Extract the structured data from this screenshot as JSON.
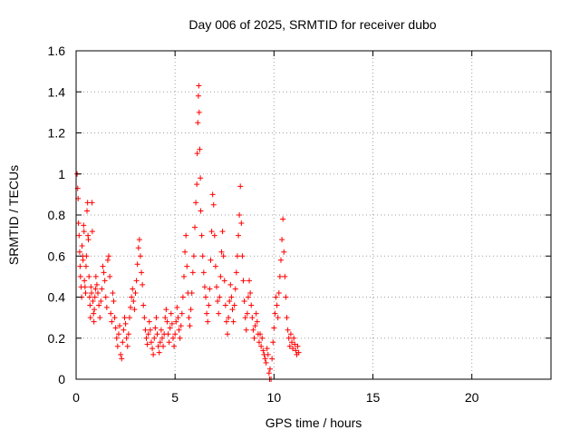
{
  "colors": {
    "series": "#ff0000",
    "axis": "#000000",
    "grid": "#a0a0a0"
  },
  "chart_data": {
    "type": "scatter",
    "title": "Day 006 of 2025, SRMTID for receiver dubo",
    "xlabel": "GPS time / hours",
    "ylabel": "SRMTID / TECUs",
    "xlim": [
      0,
      24
    ],
    "ylim": [
      0,
      1.6
    ],
    "xticks": [
      0,
      5,
      10,
      15,
      20
    ],
    "xtick_labels": [
      "0",
      "5",
      "10",
      "15",
      "20"
    ],
    "yticks": [
      0,
      0.2,
      0.4,
      0.6,
      0.8,
      1,
      1.2,
      1.4,
      1.6
    ],
    "ytick_labels": [
      "0",
      "0.2",
      "0.4",
      "0.6",
      "0.8",
      "1",
      "1.2",
      "1.4",
      "1.6"
    ],
    "grid": true,
    "marker": "+",
    "series": [
      {
        "name": "SRMTID",
        "points": [
          [
            0.05,
            1.0
          ],
          [
            0.08,
            0.93
          ],
          [
            0.1,
            0.88
          ],
          [
            0.12,
            0.76
          ],
          [
            0.15,
            0.7
          ],
          [
            0.18,
            0.62
          ],
          [
            0.2,
            0.55
          ],
          [
            0.22,
            0.5
          ],
          [
            0.25,
            0.45
          ],
          [
            0.28,
            0.4
          ],
          [
            0.3,
            0.65
          ],
          [
            0.33,
            0.6
          ],
          [
            0.35,
            0.58
          ],
          [
            0.38,
            0.75
          ],
          [
            0.4,
            0.72
          ],
          [
            0.42,
            0.48
          ],
          [
            0.45,
            0.45
          ],
          [
            0.48,
            0.42
          ],
          [
            0.5,
            0.55
          ],
          [
            0.52,
            0.6
          ],
          [
            0.55,
            0.82
          ],
          [
            0.58,
            0.86
          ],
          [
            0.6,
            0.7
          ],
          [
            0.62,
            0.68
          ],
          [
            0.65,
            0.5
          ],
          [
            0.68,
            0.4
          ],
          [
            0.7,
            0.36
          ],
          [
            0.72,
            0.3
          ],
          [
            0.75,
            0.45
          ],
          [
            0.78,
            0.42
          ],
          [
            0.8,
            0.86
          ],
          [
            0.82,
            0.72
          ],
          [
            0.85,
            0.38
          ],
          [
            0.88,
            0.32
          ],
          [
            0.9,
            0.28
          ],
          [
            0.92,
            0.34
          ],
          [
            0.95,
            0.4
          ],
          [
            0.98,
            0.44
          ],
          [
            1.0,
            0.5
          ],
          [
            1.05,
            0.46
          ],
          [
            1.1,
            0.42
          ],
          [
            1.15,
            0.36
          ],
          [
            1.2,
            0.3
          ],
          [
            1.25,
            0.38
          ],
          [
            1.3,
            0.44
          ],
          [
            1.35,
            0.55
          ],
          [
            1.4,
            0.52
          ],
          [
            1.45,
            0.48
          ],
          [
            1.5,
            0.4
          ],
          [
            1.55,
            0.35
          ],
          [
            1.6,
            0.58
          ],
          [
            1.65,
            0.6
          ],
          [
            1.7,
            0.5
          ],
          [
            1.75,
            0.32
          ],
          [
            1.8,
            0.28
          ],
          [
            1.85,
            0.42
          ],
          [
            1.9,
            0.38
          ],
          [
            1.95,
            0.3
          ],
          [
            2.0,
            0.25
          ],
          [
            2.05,
            0.2
          ],
          [
            2.1,
            0.16
          ],
          [
            2.15,
            0.22
          ],
          [
            2.2,
            0.26
          ],
          [
            2.25,
            0.12
          ],
          [
            2.3,
            0.1
          ],
          [
            2.35,
            0.18
          ],
          [
            2.4,
            0.24
          ],
          [
            2.45,
            0.3
          ],
          [
            2.5,
            0.27
          ],
          [
            2.55,
            0.2
          ],
          [
            2.6,
            0.16
          ],
          [
            2.65,
            0.22
          ],
          [
            2.7,
            0.3
          ],
          [
            2.75,
            0.35
          ],
          [
            2.8,
            0.4
          ],
          [
            2.85,
            0.44
          ],
          [
            2.9,
            0.38
          ],
          [
            2.95,
            0.34
          ],
          [
            3.0,
            0.42
          ],
          [
            3.05,
            0.48
          ],
          [
            3.1,
            0.56
          ],
          [
            3.15,
            0.64
          ],
          [
            3.2,
            0.68
          ],
          [
            3.25,
            0.6
          ],
          [
            3.3,
            0.52
          ],
          [
            3.35,
            0.46
          ],
          [
            3.4,
            0.36
          ],
          [
            3.45,
            0.3
          ],
          [
            3.5,
            0.24
          ],
          [
            3.55,
            0.2
          ],
          [
            3.6,
            0.17
          ],
          [
            3.65,
            0.22
          ],
          [
            3.7,
            0.28
          ],
          [
            3.75,
            0.24
          ],
          [
            3.8,
            0.18
          ],
          [
            3.85,
            0.15
          ],
          [
            3.9,
            0.12
          ],
          [
            3.95,
            0.2
          ],
          [
            4.0,
            0.25
          ],
          [
            4.05,
            0.3
          ],
          [
            4.1,
            0.22
          ],
          [
            4.15,
            0.16
          ],
          [
            4.2,
            0.13
          ],
          [
            4.25,
            0.18
          ],
          [
            4.3,
            0.24
          ],
          [
            4.35,
            0.2
          ],
          [
            4.4,
            0.16
          ],
          [
            4.45,
            0.22
          ],
          [
            4.5,
            0.3
          ],
          [
            4.55,
            0.34
          ],
          [
            4.6,
            0.28
          ],
          [
            4.65,
            0.22
          ],
          [
            4.7,
            0.18
          ],
          [
            4.75,
            0.25
          ],
          [
            4.8,
            0.32
          ],
          [
            4.85,
            0.27
          ],
          [
            4.9,
            0.2
          ],
          [
            4.95,
            0.16
          ],
          [
            5.0,
            0.22
          ],
          [
            5.05,
            0.28
          ],
          [
            5.1,
            0.35
          ],
          [
            5.15,
            0.3
          ],
          [
            5.2,
            0.24
          ],
          [
            5.25,
            0.2
          ],
          [
            5.3,
            0.26
          ],
          [
            5.35,
            0.32
          ],
          [
            5.4,
            0.4
          ],
          [
            5.45,
            0.5
          ],
          [
            5.5,
            0.62
          ],
          [
            5.55,
            0.7
          ],
          [
            5.6,
            0.55
          ],
          [
            5.65,
            0.42
          ],
          [
            5.7,
            0.3
          ],
          [
            5.75,
            0.26
          ],
          [
            5.8,
            0.34
          ],
          [
            5.85,
            0.42
          ],
          [
            5.9,
            0.52
          ],
          [
            5.95,
            0.6
          ],
          [
            6.0,
            0.74
          ],
          [
            6.05,
            0.86
          ],
          [
            6.1,
            0.95
          ],
          [
            6.12,
            1.1
          ],
          [
            6.15,
            1.25
          ],
          [
            6.18,
            1.38
          ],
          [
            6.2,
            1.43
          ],
          [
            6.22,
            1.3
          ],
          [
            6.25,
            1.12
          ],
          [
            6.28,
            0.98
          ],
          [
            6.3,
            0.82
          ],
          [
            6.35,
            0.7
          ],
          [
            6.4,
            0.6
          ],
          [
            6.45,
            0.52
          ],
          [
            6.5,
            0.45
          ],
          [
            6.55,
            0.4
          ],
          [
            6.6,
            0.32
          ],
          [
            6.65,
            0.28
          ],
          [
            6.7,
            0.36
          ],
          [
            6.75,
            0.44
          ],
          [
            6.8,
            0.58
          ],
          [
            6.85,
            0.72
          ],
          [
            6.9,
            0.9
          ],
          [
            6.95,
            0.85
          ],
          [
            7.0,
            0.7
          ],
          [
            7.05,
            0.55
          ],
          [
            7.1,
            0.45
          ],
          [
            7.15,
            0.38
          ],
          [
            7.2,
            0.32
          ],
          [
            7.25,
            0.4
          ],
          [
            7.3,
            0.5
          ],
          [
            7.35,
            0.62
          ],
          [
            7.4,
            0.72
          ],
          [
            7.45,
            0.6
          ],
          [
            7.5,
            0.48
          ],
          [
            7.55,
            0.36
          ],
          [
            7.6,
            0.28
          ],
          [
            7.65,
            0.22
          ],
          [
            7.7,
            0.3
          ],
          [
            7.75,
            0.38
          ],
          [
            7.8,
            0.46
          ],
          [
            7.85,
            0.4
          ],
          [
            7.9,
            0.34
          ],
          [
            7.95,
            0.28
          ],
          [
            8.0,
            0.36
          ],
          [
            8.05,
            0.44
          ],
          [
            8.1,
            0.52
          ],
          [
            8.15,
            0.6
          ],
          [
            8.2,
            0.7
          ],
          [
            8.25,
            0.8
          ],
          [
            8.3,
            0.94
          ],
          [
            8.35,
            0.76
          ],
          [
            8.4,
            0.6
          ],
          [
            8.45,
            0.48
          ],
          [
            8.5,
            0.38
          ],
          [
            8.55,
            0.3
          ],
          [
            8.6,
            0.24
          ],
          [
            8.65,
            0.32
          ],
          [
            8.7,
            0.4
          ],
          [
            8.75,
            0.48
          ],
          [
            8.8,
            0.42
          ],
          [
            8.85,
            0.36
          ],
          [
            8.9,
            0.3
          ],
          [
            8.95,
            0.24
          ],
          [
            9.0,
            0.2
          ],
          [
            9.05,
            0.26
          ],
          [
            9.1,
            0.32
          ],
          [
            9.15,
            0.28
          ],
          [
            9.2,
            0.22
          ],
          [
            9.25,
            0.18
          ],
          [
            9.3,
            0.22
          ],
          [
            9.35,
            0.16
          ],
          [
            9.4,
            0.2
          ],
          [
            9.45,
            0.14
          ],
          [
            9.5,
            0.12
          ],
          [
            9.55,
            0.1
          ],
          [
            9.6,
            0.08
          ],
          [
            9.65,
            0.15
          ],
          [
            9.7,
            0.12
          ],
          [
            9.75,
            0.03
          ],
          [
            9.78,
            0.0
          ],
          [
            9.8,
            0.05
          ],
          [
            9.85,
            0.0
          ],
          [
            9.9,
            0.1
          ],
          [
            9.95,
            0.18
          ],
          [
            10.0,
            0.25
          ],
          [
            10.05,
            0.32
          ],
          [
            10.1,
            0.4
          ],
          [
            10.15,
            0.36
          ],
          [
            10.2,
            0.3
          ],
          [
            10.25,
            0.42
          ],
          [
            10.3,
            0.5
          ],
          [
            10.35,
            0.58
          ],
          [
            10.4,
            0.68
          ],
          [
            10.45,
            0.78
          ],
          [
            10.5,
            0.62
          ],
          [
            10.55,
            0.5
          ],
          [
            10.6,
            0.4
          ],
          [
            10.65,
            0.3
          ],
          [
            10.7,
            0.24
          ],
          [
            10.75,
            0.2
          ],
          [
            10.8,
            0.16
          ],
          [
            10.85,
            0.22
          ],
          [
            10.9,
            0.18
          ],
          [
            10.95,
            0.15
          ],
          [
            11.0,
            0.2
          ],
          [
            11.05,
            0.17
          ],
          [
            11.1,
            0.14
          ],
          [
            11.15,
            0.12
          ],
          [
            11.2,
            0.16
          ],
          [
            11.25,
            0.13
          ]
        ]
      }
    ]
  }
}
